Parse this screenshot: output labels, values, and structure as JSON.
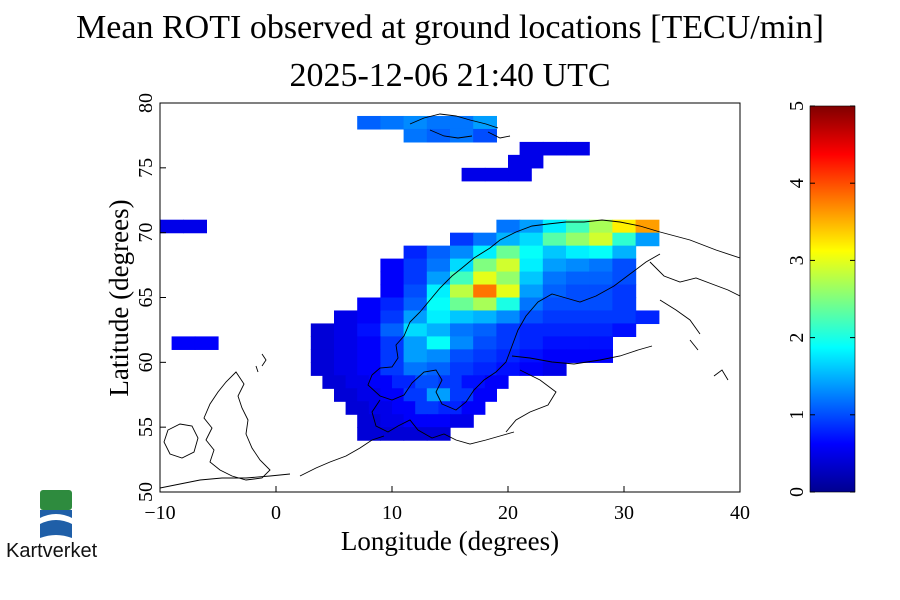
{
  "title": "Mean ROTI observed at ground locations [TECU/min]",
  "subtitle": "2025-12-06 21:40 UTC",
  "logo": {
    "text": "Kartverket",
    "colors": [
      "#2e8b3e",
      "#1f5fa8"
    ]
  },
  "chart_data": {
    "type": "heatmap",
    "title": "Mean ROTI observed at ground locations [TECU/min]",
    "subtitle": "2025-12-06 21:40 UTC",
    "xlabel": "Longitude (degrees)",
    "ylabel": "Latitude (degrees)",
    "xlim": [
      -10,
      40
    ],
    "ylim": [
      50,
      80
    ],
    "xticks": [
      -10,
      0,
      10,
      20,
      30,
      40
    ],
    "yticks": [
      50,
      55,
      60,
      65,
      70,
      75,
      80
    ],
    "colorbar": {
      "label": "TECU/min",
      "range": [
        0,
        5
      ],
      "ticks": [
        0,
        1,
        2,
        3,
        4,
        5
      ]
    },
    "cells": [
      {
        "lon": -9,
        "lat": 70.5,
        "value": 0.5
      },
      {
        "lon": -7,
        "lat": 70.5,
        "value": 0.5
      },
      {
        "lon": -8,
        "lat": 61.5,
        "value": 0.6
      },
      {
        "lon": -6,
        "lat": 61.5,
        "value": 0.6
      },
      {
        "lon": 8,
        "lat": 78.5,
        "value": 1.1
      },
      {
        "lon": 10,
        "lat": 78.5,
        "value": 1.2
      },
      {
        "lon": 12,
        "lat": 78.5,
        "value": 1.3
      },
      {
        "lon": 14,
        "lat": 78.5,
        "value": 1.2
      },
      {
        "lon": 16,
        "lat": 78.5,
        "value": 1.2
      },
      {
        "lon": 18,
        "lat": 78.5,
        "value": 1.4
      },
      {
        "lon": 12,
        "lat": 77.5,
        "value": 1.2
      },
      {
        "lon": 14,
        "lat": 77.5,
        "value": 1.1
      },
      {
        "lon": 16,
        "lat": 77.5,
        "value": 1.2
      },
      {
        "lon": 18,
        "lat": 77.5,
        "value": 1.0
      },
      {
        "lon": 22,
        "lat": 76.5,
        "value": 0.5
      },
      {
        "lon": 24,
        "lat": 76.5,
        "value": 0.5
      },
      {
        "lon": 26,
        "lat": 76.5,
        "value": 0.5
      },
      {
        "lon": 21,
        "lat": 75.5,
        "value": 0.5
      },
      {
        "lon": 22,
        "lat": 75.5,
        "value": 0.5
      },
      {
        "lon": 17,
        "lat": 74.5,
        "value": 0.5
      },
      {
        "lon": 19,
        "lat": 74.5,
        "value": 0.5
      },
      {
        "lon": 21,
        "lat": 74.5,
        "value": 0.5
      },
      {
        "lon": 20,
        "lat": 70.5,
        "value": 1.2
      },
      {
        "lon": 22,
        "lat": 70.5,
        "value": 1.4
      },
      {
        "lon": 24,
        "lat": 70.5,
        "value": 1.8
      },
      {
        "lon": 26,
        "lat": 70.5,
        "value": 2.2
      },
      {
        "lon": 28,
        "lat": 70.5,
        "value": 2.7
      },
      {
        "lon": 30,
        "lat": 70.5,
        "value": 3.2
      },
      {
        "lon": 32,
        "lat": 70.5,
        "value": 3.6
      },
      {
        "lon": 16,
        "lat": 69.5,
        "value": 0.9
      },
      {
        "lon": 18,
        "lat": 69.5,
        "value": 1.2
      },
      {
        "lon": 20,
        "lat": 69.5,
        "value": 1.5
      },
      {
        "lon": 22,
        "lat": 69.5,
        "value": 1.7
      },
      {
        "lon": 24,
        "lat": 69.5,
        "value": 2.3
      },
      {
        "lon": 26,
        "lat": 69.5,
        "value": 2.6
      },
      {
        "lon": 28,
        "lat": 69.5,
        "value": 2.9
      },
      {
        "lon": 30,
        "lat": 69.5,
        "value": 2.1
      },
      {
        "lon": 32,
        "lat": 69.5,
        "value": 1.4
      },
      {
        "lon": 12,
        "lat": 68.5,
        "value": 0.8
      },
      {
        "lon": 14,
        "lat": 68.5,
        "value": 1.1
      },
      {
        "lon": 16,
        "lat": 68.5,
        "value": 1.3
      },
      {
        "lon": 18,
        "lat": 68.5,
        "value": 1.8
      },
      {
        "lon": 20,
        "lat": 68.5,
        "value": 2.4
      },
      {
        "lon": 22,
        "lat": 68.5,
        "value": 1.9
      },
      {
        "lon": 24,
        "lat": 68.5,
        "value": 1.6
      },
      {
        "lon": 26,
        "lat": 68.5,
        "value": 1.8
      },
      {
        "lon": 28,
        "lat": 68.5,
        "value": 1.9
      },
      {
        "lon": 30,
        "lat": 68.5,
        "value": 1.5
      },
      {
        "lon": 10,
        "lat": 67.5,
        "value": 0.6
      },
      {
        "lon": 12,
        "lat": 67.5,
        "value": 0.9
      },
      {
        "lon": 14,
        "lat": 67.5,
        "value": 1.2
      },
      {
        "lon": 16,
        "lat": 67.5,
        "value": 1.7
      },
      {
        "lon": 18,
        "lat": 67.5,
        "value": 2.5
      },
      {
        "lon": 20,
        "lat": 67.5,
        "value": 2.9
      },
      {
        "lon": 22,
        "lat": 67.5,
        "value": 1.8
      },
      {
        "lon": 24,
        "lat": 67.5,
        "value": 1.4
      },
      {
        "lon": 26,
        "lat": 67.5,
        "value": 1.3
      },
      {
        "lon": 28,
        "lat": 67.5,
        "value": 1.2
      },
      {
        "lon": 30,
        "lat": 67.5,
        "value": 1.0
      },
      {
        "lon": 10,
        "lat": 66.5,
        "value": 0.6
      },
      {
        "lon": 12,
        "lat": 66.5,
        "value": 0.9
      },
      {
        "lon": 14,
        "lat": 66.5,
        "value": 1.4
      },
      {
        "lon": 16,
        "lat": 66.5,
        "value": 2.2
      },
      {
        "lon": 18,
        "lat": 66.5,
        "value": 3.0
      },
      {
        "lon": 20,
        "lat": 66.5,
        "value": 2.6
      },
      {
        "lon": 22,
        "lat": 66.5,
        "value": 1.6
      },
      {
        "lon": 24,
        "lat": 66.5,
        "value": 1.2
      },
      {
        "lon": 26,
        "lat": 66.5,
        "value": 1.1
      },
      {
        "lon": 28,
        "lat": 66.5,
        "value": 1.1
      },
      {
        "lon": 30,
        "lat": 66.5,
        "value": 1.0
      },
      {
        "lon": 10,
        "lat": 65.5,
        "value": 0.6
      },
      {
        "lon": 12,
        "lat": 65.5,
        "value": 1.0
      },
      {
        "lon": 14,
        "lat": 65.5,
        "value": 1.8
      },
      {
        "lon": 16,
        "lat": 65.5,
        "value": 2.8
      },
      {
        "lon": 18,
        "lat": 65.5,
        "value": 3.8
      },
      {
        "lon": 20,
        "lat": 65.5,
        "value": 3.0
      },
      {
        "lon": 22,
        "lat": 65.5,
        "value": 1.4
      },
      {
        "lon": 24,
        "lat": 65.5,
        "value": 1.1
      },
      {
        "lon": 26,
        "lat": 65.5,
        "value": 1.0
      },
      {
        "lon": 28,
        "lat": 65.5,
        "value": 1.0
      },
      {
        "lon": 30,
        "lat": 65.5,
        "value": 0.9
      },
      {
        "lon": 8,
        "lat": 64.5,
        "value": 0.6
      },
      {
        "lon": 10,
        "lat": 64.5,
        "value": 0.8
      },
      {
        "lon": 12,
        "lat": 64.5,
        "value": 1.1
      },
      {
        "lon": 14,
        "lat": 64.5,
        "value": 1.9
      },
      {
        "lon": 16,
        "lat": 64.5,
        "value": 2.4
      },
      {
        "lon": 18,
        "lat": 64.5,
        "value": 2.7
      },
      {
        "lon": 20,
        "lat": 64.5,
        "value": 2.0
      },
      {
        "lon": 22,
        "lat": 64.5,
        "value": 1.2
      },
      {
        "lon": 24,
        "lat": 64.5,
        "value": 1.0
      },
      {
        "lon": 26,
        "lat": 64.5,
        "value": 1.0
      },
      {
        "lon": 28,
        "lat": 64.5,
        "value": 1.0
      },
      {
        "lon": 30,
        "lat": 64.5,
        "value": 0.9
      },
      {
        "lon": 6,
        "lat": 63.5,
        "value": 0.5
      },
      {
        "lon": 8,
        "lat": 63.5,
        "value": 0.6
      },
      {
        "lon": 10,
        "lat": 63.5,
        "value": 0.9
      },
      {
        "lon": 12,
        "lat": 63.5,
        "value": 1.4
      },
      {
        "lon": 14,
        "lat": 63.5,
        "value": 1.8
      },
      {
        "lon": 16,
        "lat": 63.5,
        "value": 1.6
      },
      {
        "lon": 18,
        "lat": 63.5,
        "value": 1.5
      },
      {
        "lon": 20,
        "lat": 63.5,
        "value": 1.3
      },
      {
        "lon": 22,
        "lat": 63.5,
        "value": 1.0
      },
      {
        "lon": 24,
        "lat": 63.5,
        "value": 0.9
      },
      {
        "lon": 26,
        "lat": 63.5,
        "value": 0.9
      },
      {
        "lon": 28,
        "lat": 63.5,
        "value": 0.9
      },
      {
        "lon": 30,
        "lat": 63.5,
        "value": 0.9
      },
      {
        "lon": 32,
        "lat": 63.5,
        "value": 0.8
      },
      {
        "lon": 4,
        "lat": 62.5,
        "value": 0.4
      },
      {
        "lon": 6,
        "lat": 62.5,
        "value": 0.5
      },
      {
        "lon": 8,
        "lat": 62.5,
        "value": 0.7
      },
      {
        "lon": 10,
        "lat": 62.5,
        "value": 1.1
      },
      {
        "lon": 12,
        "lat": 62.5,
        "value": 1.7
      },
      {
        "lon": 14,
        "lat": 62.5,
        "value": 1.5
      },
      {
        "lon": 16,
        "lat": 62.5,
        "value": 1.2
      },
      {
        "lon": 18,
        "lat": 62.5,
        "value": 1.1
      },
      {
        "lon": 20,
        "lat": 62.5,
        "value": 0.9
      },
      {
        "lon": 22,
        "lat": 62.5,
        "value": 0.8
      },
      {
        "lon": 24,
        "lat": 62.5,
        "value": 0.8
      },
      {
        "lon": 26,
        "lat": 62.5,
        "value": 0.8
      },
      {
        "lon": 28,
        "lat": 62.5,
        "value": 0.8
      },
      {
        "lon": 30,
        "lat": 62.5,
        "value": 0.7
      },
      {
        "lon": 4,
        "lat": 61.5,
        "value": 0.4
      },
      {
        "lon": 6,
        "lat": 61.5,
        "value": 0.5
      },
      {
        "lon": 8,
        "lat": 61.5,
        "value": 0.6
      },
      {
        "lon": 10,
        "lat": 61.5,
        "value": 0.9
      },
      {
        "lon": 12,
        "lat": 61.5,
        "value": 1.4
      },
      {
        "lon": 14,
        "lat": 61.5,
        "value": 1.9
      },
      {
        "lon": 16,
        "lat": 61.5,
        "value": 1.3
      },
      {
        "lon": 18,
        "lat": 61.5,
        "value": 1.0
      },
      {
        "lon": 20,
        "lat": 61.5,
        "value": 0.9
      },
      {
        "lon": 22,
        "lat": 61.5,
        "value": 0.8
      },
      {
        "lon": 24,
        "lat": 61.5,
        "value": 0.7
      },
      {
        "lon": 26,
        "lat": 61.5,
        "value": 0.7
      },
      {
        "lon": 28,
        "lat": 61.5,
        "value": 0.7
      },
      {
        "lon": 4,
        "lat": 60.5,
        "value": 0.4
      },
      {
        "lon": 6,
        "lat": 60.5,
        "value": 0.5
      },
      {
        "lon": 8,
        "lat": 60.5,
        "value": 0.6
      },
      {
        "lon": 10,
        "lat": 60.5,
        "value": 0.9
      },
      {
        "lon": 12,
        "lat": 60.5,
        "value": 1.4
      },
      {
        "lon": 14,
        "lat": 60.5,
        "value": 1.3
      },
      {
        "lon": 16,
        "lat": 60.5,
        "value": 1.0
      },
      {
        "lon": 18,
        "lat": 60.5,
        "value": 0.9
      },
      {
        "lon": 20,
        "lat": 60.5,
        "value": 0.8
      },
      {
        "lon": 22,
        "lat": 60.5,
        "value": 0.7
      },
      {
        "lon": 24,
        "lat": 60.5,
        "value": 0.6
      },
      {
        "lon": 26,
        "lat": 60.5,
        "value": 0.6
      },
      {
        "lon": 28,
        "lat": 60.5,
        "value": 0.6
      },
      {
        "lon": 4,
        "lat": 59.5,
        "value": 0.4
      },
      {
        "lon": 6,
        "lat": 59.5,
        "value": 0.5
      },
      {
        "lon": 8,
        "lat": 59.5,
        "value": 0.6
      },
      {
        "lon": 10,
        "lat": 59.5,
        "value": 0.9
      },
      {
        "lon": 12,
        "lat": 59.5,
        "value": 1.2
      },
      {
        "lon": 14,
        "lat": 59.5,
        "value": 1.1
      },
      {
        "lon": 16,
        "lat": 59.5,
        "value": 0.9
      },
      {
        "lon": 18,
        "lat": 59.5,
        "value": 0.8
      },
      {
        "lon": 20,
        "lat": 59.5,
        "value": 0.7
      },
      {
        "lon": 22,
        "lat": 59.5,
        "value": 0.6
      },
      {
        "lon": 24,
        "lat": 59.5,
        "value": 0.5
      },
      {
        "lon": 5,
        "lat": 58.5,
        "value": 0.4
      },
      {
        "lon": 7,
        "lat": 58.5,
        "value": 0.5
      },
      {
        "lon": 9,
        "lat": 58.5,
        "value": 0.6
      },
      {
        "lon": 11,
        "lat": 58.5,
        "value": 0.8
      },
      {
        "lon": 13,
        "lat": 58.5,
        "value": 1.0
      },
      {
        "lon": 15,
        "lat": 58.5,
        "value": 0.9
      },
      {
        "lon": 17,
        "lat": 58.5,
        "value": 0.7
      },
      {
        "lon": 19,
        "lat": 58.5,
        "value": 0.6
      },
      {
        "lon": 6,
        "lat": 57.5,
        "value": 0.4
      },
      {
        "lon": 8,
        "lat": 57.5,
        "value": 0.5
      },
      {
        "lon": 10,
        "lat": 57.5,
        "value": 0.6
      },
      {
        "lon": 12,
        "lat": 57.5,
        "value": 0.9
      },
      {
        "lon": 14,
        "lat": 57.5,
        "value": 1.4
      },
      {
        "lon": 16,
        "lat": 57.5,
        "value": 0.9
      },
      {
        "lon": 18,
        "lat": 57.5,
        "value": 0.6
      },
      {
        "lon": 7,
        "lat": 56.5,
        "value": 0.4
      },
      {
        "lon": 9,
        "lat": 56.5,
        "value": 0.5
      },
      {
        "lon": 11,
        "lat": 56.5,
        "value": 0.6
      },
      {
        "lon": 13,
        "lat": 56.5,
        "value": 0.9
      },
      {
        "lon": 15,
        "lat": 56.5,
        "value": 0.8
      },
      {
        "lon": 17,
        "lat": 56.5,
        "value": 0.6
      },
      {
        "lon": 8,
        "lat": 55.5,
        "value": 0.4
      },
      {
        "lon": 10,
        "lat": 55.5,
        "value": 0.5
      },
      {
        "lon": 12,
        "lat": 55.5,
        "value": 0.6
      },
      {
        "lon": 14,
        "lat": 55.5,
        "value": 0.6
      },
      {
        "lon": 16,
        "lat": 55.5,
        "value": 0.5
      },
      {
        "lon": 8,
        "lat": 54.5,
        "value": 0.4
      },
      {
        "lon": 10,
        "lat": 54.5,
        "value": 0.4
      },
      {
        "lon": 12,
        "lat": 54.5,
        "value": 0.4
      },
      {
        "lon": 14,
        "lat": 54.5,
        "value": 0.4
      }
    ]
  }
}
